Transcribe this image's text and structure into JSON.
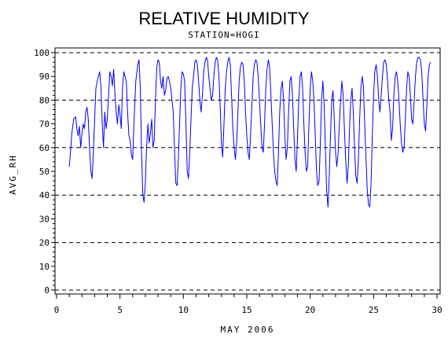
{
  "chart_data": {
    "type": "line",
    "title": "RELATIVE HUMIDITY",
    "subtitle": "STATION=HOGI",
    "xlabel": "MAY 2006",
    "ylabel": "AVG_RH",
    "xlim": [
      0,
      30
    ],
    "ylim": [
      0,
      100
    ],
    "x_ticks": [
      0,
      5,
      10,
      15,
      20,
      25,
      30
    ],
    "y_ticks": [
      0,
      10,
      20,
      30,
      40,
      50,
      60,
      70,
      80,
      90,
      100
    ],
    "reference_lines": [
      0,
      20,
      40,
      60,
      80,
      100
    ],
    "grid": false,
    "legend": "none",
    "series": [
      {
        "color": "#0000ff",
        "points": [
          [
            1.0,
            52
          ],
          [
            1.1,
            58
          ],
          [
            1.2,
            66
          ],
          [
            1.35,
            72
          ],
          [
            1.5,
            73
          ],
          [
            1.6,
            68
          ],
          [
            1.7,
            65
          ],
          [
            1.8,
            69
          ],
          [
            1.9,
            60
          ],
          [
            2.0,
            66
          ],
          [
            2.1,
            70
          ],
          [
            2.2,
            68
          ],
          [
            2.3,
            75
          ],
          [
            2.4,
            77
          ],
          [
            2.5,
            72
          ],
          [
            2.6,
            60
          ],
          [
            2.7,
            50
          ],
          [
            2.8,
            47
          ],
          [
            2.9,
            58
          ],
          [
            3.0,
            72
          ],
          [
            3.1,
            85
          ],
          [
            3.25,
            89
          ],
          [
            3.4,
            92
          ],
          [
            3.5,
            85
          ],
          [
            3.6,
            70
          ],
          [
            3.7,
            60
          ],
          [
            3.8,
            75
          ],
          [
            3.9,
            68
          ],
          [
            4.0,
            72
          ],
          [
            4.1,
            82
          ],
          [
            4.2,
            92
          ],
          [
            4.3,
            90
          ],
          [
            4.4,
            86
          ],
          [
            4.5,
            93
          ],
          [
            4.6,
            83
          ],
          [
            4.7,
            75
          ],
          [
            4.8,
            70
          ],
          [
            4.9,
            78
          ],
          [
            5.0,
            74
          ],
          [
            5.1,
            68
          ],
          [
            5.2,
            85
          ],
          [
            5.3,
            92
          ],
          [
            5.4,
            90
          ],
          [
            5.5,
            88
          ],
          [
            5.6,
            75
          ],
          [
            5.7,
            65
          ],
          [
            5.8,
            63
          ],
          [
            5.9,
            57
          ],
          [
            6.0,
            55
          ],
          [
            6.1,
            70
          ],
          [
            6.25,
            88
          ],
          [
            6.4,
            95
          ],
          [
            6.5,
            97
          ],
          [
            6.6,
            85
          ],
          [
            6.7,
            58
          ],
          [
            6.8,
            40
          ],
          [
            6.9,
            37
          ],
          [
            7.0,
            45
          ],
          [
            7.1,
            60
          ],
          [
            7.2,
            70
          ],
          [
            7.3,
            62
          ],
          [
            7.4,
            66
          ],
          [
            7.5,
            72
          ],
          [
            7.6,
            60
          ],
          [
            7.7,
            63
          ],
          [
            7.8,
            80
          ],
          [
            7.9,
            94
          ],
          [
            8.0,
            97
          ],
          [
            8.1,
            96
          ],
          [
            8.2,
            88
          ],
          [
            8.3,
            85
          ],
          [
            8.4,
            90
          ],
          [
            8.5,
            82
          ],
          [
            8.6,
            84
          ],
          [
            8.7,
            89
          ],
          [
            8.8,
            90
          ],
          [
            8.9,
            88
          ],
          [
            9.0,
            85
          ],
          [
            9.1,
            80
          ],
          [
            9.2,
            75
          ],
          [
            9.3,
            60
          ],
          [
            9.4,
            45
          ],
          [
            9.5,
            44
          ],
          [
            9.6,
            55
          ],
          [
            9.7,
            70
          ],
          [
            9.8,
            85
          ],
          [
            9.9,
            92
          ],
          [
            10.0,
            91
          ],
          [
            10.1,
            88
          ],
          [
            10.2,
            70
          ],
          [
            10.3,
            50
          ],
          [
            10.4,
            47
          ],
          [
            10.5,
            58
          ],
          [
            10.6,
            72
          ],
          [
            10.7,
            85
          ],
          [
            10.8,
            90
          ],
          [
            10.9,
            96
          ],
          [
            11.0,
            97
          ],
          [
            11.1,
            95
          ],
          [
            11.2,
            88
          ],
          [
            11.3,
            80
          ],
          [
            11.4,
            75
          ],
          [
            11.5,
            82
          ],
          [
            11.6,
            92
          ],
          [
            11.7,
            96
          ],
          [
            11.8,
            98
          ],
          [
            11.9,
            97
          ],
          [
            12.0,
            90
          ],
          [
            12.1,
            85
          ],
          [
            12.2,
            80
          ],
          [
            12.3,
            82
          ],
          [
            12.4,
            90
          ],
          [
            12.5,
            96
          ],
          [
            12.6,
            98
          ],
          [
            12.7,
            97
          ],
          [
            12.8,
            90
          ],
          [
            12.9,
            78
          ],
          [
            13.0,
            62
          ],
          [
            13.1,
            56
          ],
          [
            13.2,
            70
          ],
          [
            13.3,
            85
          ],
          [
            13.4,
            92
          ],
          [
            13.5,
            96
          ],
          [
            13.6,
            98
          ],
          [
            13.7,
            95
          ],
          [
            13.8,
            82
          ],
          [
            13.9,
            68
          ],
          [
            14.0,
            60
          ],
          [
            14.1,
            55
          ],
          [
            14.2,
            62
          ],
          [
            14.3,
            75
          ],
          [
            14.4,
            88
          ],
          [
            14.5,
            94
          ],
          [
            14.6,
            96
          ],
          [
            14.7,
            95
          ],
          [
            14.8,
            88
          ],
          [
            14.9,
            75
          ],
          [
            15.0,
            65
          ],
          [
            15.1,
            58
          ],
          [
            15.2,
            55
          ],
          [
            15.3,
            65
          ],
          [
            15.4,
            78
          ],
          [
            15.5,
            90
          ],
          [
            15.6,
            95
          ],
          [
            15.7,
            97
          ],
          [
            15.8,
            96
          ],
          [
            15.9,
            90
          ],
          [
            16.0,
            80
          ],
          [
            16.1,
            70
          ],
          [
            16.2,
            60
          ],
          [
            16.3,
            58
          ],
          [
            16.4,
            70
          ],
          [
            16.5,
            85
          ],
          [
            16.6,
            93
          ],
          [
            16.7,
            97
          ],
          [
            16.8,
            94
          ],
          [
            16.9,
            82
          ],
          [
            17.0,
            70
          ],
          [
            17.1,
            58
          ],
          [
            17.2,
            50
          ],
          [
            17.3,
            46
          ],
          [
            17.4,
            44
          ],
          [
            17.5,
            58
          ],
          [
            17.6,
            75
          ],
          [
            17.7,
            85
          ],
          [
            17.8,
            88
          ],
          [
            17.9,
            80
          ],
          [
            18.0,
            65
          ],
          [
            18.1,
            55
          ],
          [
            18.2,
            60
          ],
          [
            18.3,
            75
          ],
          [
            18.4,
            88
          ],
          [
            18.5,
            90
          ],
          [
            18.6,
            82
          ],
          [
            18.7,
            68
          ],
          [
            18.8,
            55
          ],
          [
            18.9,
            50
          ],
          [
            19.0,
            64
          ],
          [
            19.1,
            80
          ],
          [
            19.2,
            90
          ],
          [
            19.3,
            92
          ],
          [
            19.4,
            85
          ],
          [
            19.5,
            70
          ],
          [
            19.6,
            58
          ],
          [
            19.7,
            50
          ],
          [
            19.8,
            52
          ],
          [
            19.9,
            70
          ],
          [
            20.0,
            85
          ],
          [
            20.1,
            92
          ],
          [
            20.2,
            88
          ],
          [
            20.3,
            80
          ],
          [
            20.4,
            65
          ],
          [
            20.5,
            50
          ],
          [
            20.6,
            44
          ],
          [
            20.7,
            46
          ],
          [
            20.8,
            62
          ],
          [
            20.9,
            80
          ],
          [
            21.0,
            88
          ],
          [
            21.1,
            78
          ],
          [
            21.2,
            60
          ],
          [
            21.3,
            42
          ],
          [
            21.4,
            35
          ],
          [
            21.5,
            48
          ],
          [
            21.6,
            65
          ],
          [
            21.7,
            80
          ],
          [
            21.8,
            84
          ],
          [
            21.9,
            72
          ],
          [
            22.0,
            58
          ],
          [
            22.1,
            52
          ],
          [
            22.2,
            58
          ],
          [
            22.3,
            70
          ],
          [
            22.4,
            80
          ],
          [
            22.5,
            88
          ],
          [
            22.6,
            82
          ],
          [
            22.7,
            68
          ],
          [
            22.8,
            55
          ],
          [
            22.9,
            45
          ],
          [
            23.0,
            52
          ],
          [
            23.1,
            68
          ],
          [
            23.2,
            80
          ],
          [
            23.3,
            85
          ],
          [
            23.4,
            75
          ],
          [
            23.5,
            60
          ],
          [
            23.6,
            48
          ],
          [
            23.7,
            45
          ],
          [
            23.8,
            55
          ],
          [
            23.9,
            72
          ],
          [
            24.0,
            85
          ],
          [
            24.1,
            90
          ],
          [
            24.2,
            86
          ],
          [
            24.3,
            70
          ],
          [
            24.4,
            55
          ],
          [
            24.5,
            42
          ],
          [
            24.6,
            36
          ],
          [
            24.7,
            35
          ],
          [
            24.8,
            45
          ],
          [
            24.9,
            65
          ],
          [
            25.0,
            82
          ],
          [
            25.1,
            92
          ],
          [
            25.2,
            95
          ],
          [
            25.3,
            90
          ],
          [
            25.4,
            80
          ],
          [
            25.5,
            75
          ],
          [
            25.6,
            82
          ],
          [
            25.7,
            90
          ],
          [
            25.8,
            96
          ],
          [
            25.9,
            97
          ],
          [
            26.0,
            95
          ],
          [
            26.1,
            88
          ],
          [
            26.2,
            80
          ],
          [
            26.3,
            75
          ],
          [
            26.4,
            63
          ],
          [
            26.5,
            68
          ],
          [
            26.6,
            82
          ],
          [
            26.7,
            90
          ],
          [
            26.8,
            92
          ],
          [
            26.9,
            88
          ],
          [
            27.0,
            80
          ],
          [
            27.1,
            70
          ],
          [
            27.2,
            62
          ],
          [
            27.3,
            58
          ],
          [
            27.4,
            60
          ],
          [
            27.5,
            72
          ],
          [
            27.6,
            85
          ],
          [
            27.7,
            92
          ],
          [
            27.8,
            90
          ],
          [
            27.9,
            82
          ],
          [
            28.0,
            72
          ],
          [
            28.1,
            70
          ],
          [
            28.2,
            80
          ],
          [
            28.3,
            90
          ],
          [
            28.4,
            96
          ],
          [
            28.5,
            98
          ],
          [
            28.6,
            98
          ],
          [
            28.7,
            97
          ],
          [
            28.8,
            92
          ],
          [
            28.9,
            80
          ],
          [
            29.0,
            70
          ],
          [
            29.1,
            67
          ],
          [
            29.2,
            78
          ],
          [
            29.3,
            90
          ],
          [
            29.4,
            95
          ],
          [
            29.5,
            96
          ]
        ]
      }
    ]
  }
}
